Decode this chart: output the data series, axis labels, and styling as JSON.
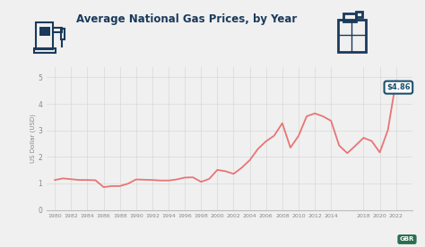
{
  "title": "Average National Gas Prices, by Year",
  "ylabel": "US Dollar (USD)",
  "background_color": "#f0f0f0",
  "plot_bg_color": "#f0f0f0",
  "line_color": "#e87575",
  "annotation_text": "$4.86",
  "annotation_bg": "#ffffff",
  "annotation_border": "#1a4f6e",
  "annotation_text_color": "#1a4f6e",
  "gbr_bg": "#2a6e50",
  "gbr_color": "#ffffff",
  "title_color": "#1a3a5c",
  "grid_color": "#d8d8d8",
  "tick_color": "#888888",
  "years": [
    1980,
    1981,
    1982,
    1983,
    1984,
    1985,
    1986,
    1987,
    1988,
    1989,
    1990,
    1991,
    1992,
    1993,
    1994,
    1995,
    1996,
    1997,
    1998,
    1999,
    2000,
    2001,
    2002,
    2003,
    2004,
    2005,
    2006,
    2007,
    2008,
    2009,
    2010,
    2011,
    2012,
    2013,
    2014,
    2015,
    2016,
    2017,
    2018,
    2019,
    2020,
    2021,
    2022
  ],
  "prices": [
    1.13,
    1.19,
    1.16,
    1.13,
    1.13,
    1.12,
    0.86,
    0.9,
    0.9,
    0.99,
    1.15,
    1.14,
    1.13,
    1.11,
    1.11,
    1.15,
    1.22,
    1.23,
    1.06,
    1.17,
    1.51,
    1.46,
    1.36,
    1.59,
    1.88,
    2.3,
    2.59,
    2.8,
    3.27,
    2.35,
    2.79,
    3.53,
    3.64,
    3.53,
    3.36,
    2.43,
    2.14,
    2.42,
    2.72,
    2.6,
    2.17,
    3.01,
    4.86
  ],
  "xtick_years": [
    1980,
    1982,
    1984,
    1986,
    1988,
    1990,
    1992,
    1994,
    1996,
    1998,
    2000,
    2002,
    2004,
    2006,
    2008,
    2010,
    2012,
    2014,
    2018,
    2020,
    2022
  ],
  "yticks": [
    0,
    1,
    2,
    3,
    4,
    5
  ],
  "xlim": [
    1979,
    2024
  ],
  "ylim": [
    0,
    5.4
  ]
}
